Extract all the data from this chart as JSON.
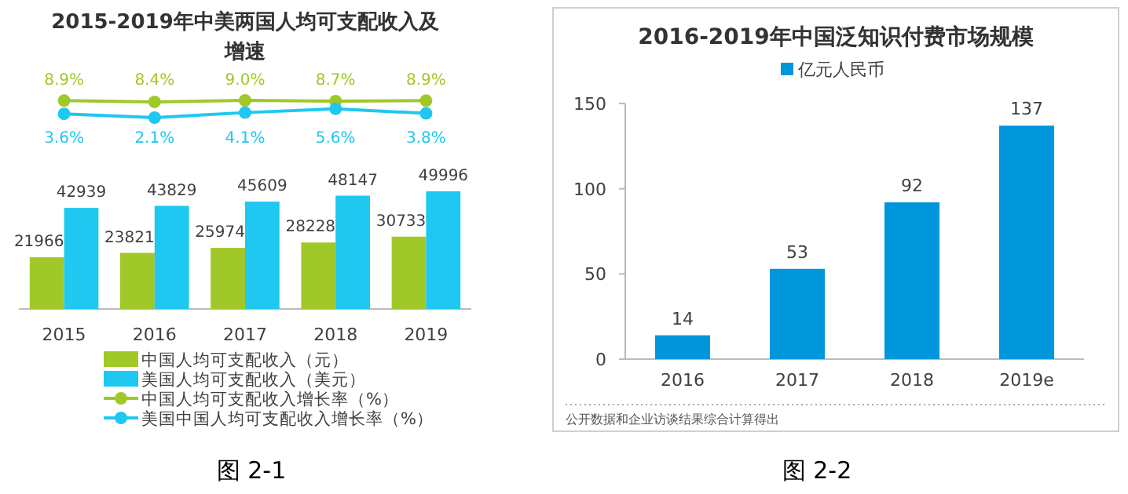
{
  "chart_data": [
    {
      "type": "line",
      "title": "2015-2019年中美两国人均可支配收入及增速",
      "categories": [
        null,
        null,
        null,
        null,
        null
      ],
      "series": [
        {
          "name": "中国人均可支配收入增长率（%）",
          "color": "#a0c828",
          "values": [
            8.9,
            8.4,
            9.0,
            8.7,
            8.9
          ],
          "value_labels": [
            "8.9%",
            "8.4%",
            "9.0%",
            "8.7%",
            "8.9%"
          ]
        },
        {
          "name": "美国中国人均可支配收入增长率（%）",
          "color": "#1ec8f0",
          "values": [
            3.6,
            2.1,
            4.1,
            5.6,
            3.8
          ],
          "value_labels": [
            "3.6%",
            "2.1%",
            "4.1%",
            "5.6%",
            "3.8%"
          ]
        }
      ],
      "marker": "circle",
      "legend": "bottom"
    },
    {
      "type": "bar",
      "categories": [
        "2015",
        "2016",
        "2017",
        "2018",
        "2019"
      ],
      "relative": false,
      "series": [
        {
          "name": "中国人均可支配收入（元）",
          "color": "#a0c828",
          "values": [
            21966,
            23821,
            25974,
            28228,
            30733
          ]
        },
        {
          "name": "美国人均可支配收入（美元）",
          "color": "#1ec8f0",
          "values": [
            42939,
            43829,
            45609,
            48147,
            49996
          ]
        }
      ],
      "data_labels": true,
      "legend": "bottom",
      "annotations": [
        "图 2-1"
      ]
    },
    {
      "type": "bar",
      "title": "2016-2019年中国泛知识付费市场规模",
      "categories": [
        "2016",
        "2017",
        "2018",
        "2019e"
      ],
      "series": [
        {
          "name": "亿元人民币",
          "color": "#0096dc",
          "values": [
            14,
            53,
            92,
            137
          ]
        }
      ],
      "ylim": [
        0,
        150
      ],
      "yticks": [
        0,
        50,
        100,
        150
      ],
      "data_labels": true,
      "legend": "top",
      "annotations": [
        "公开数据和企业访谈结果综合计算得出",
        "图 2-2"
      ]
    }
  ]
}
